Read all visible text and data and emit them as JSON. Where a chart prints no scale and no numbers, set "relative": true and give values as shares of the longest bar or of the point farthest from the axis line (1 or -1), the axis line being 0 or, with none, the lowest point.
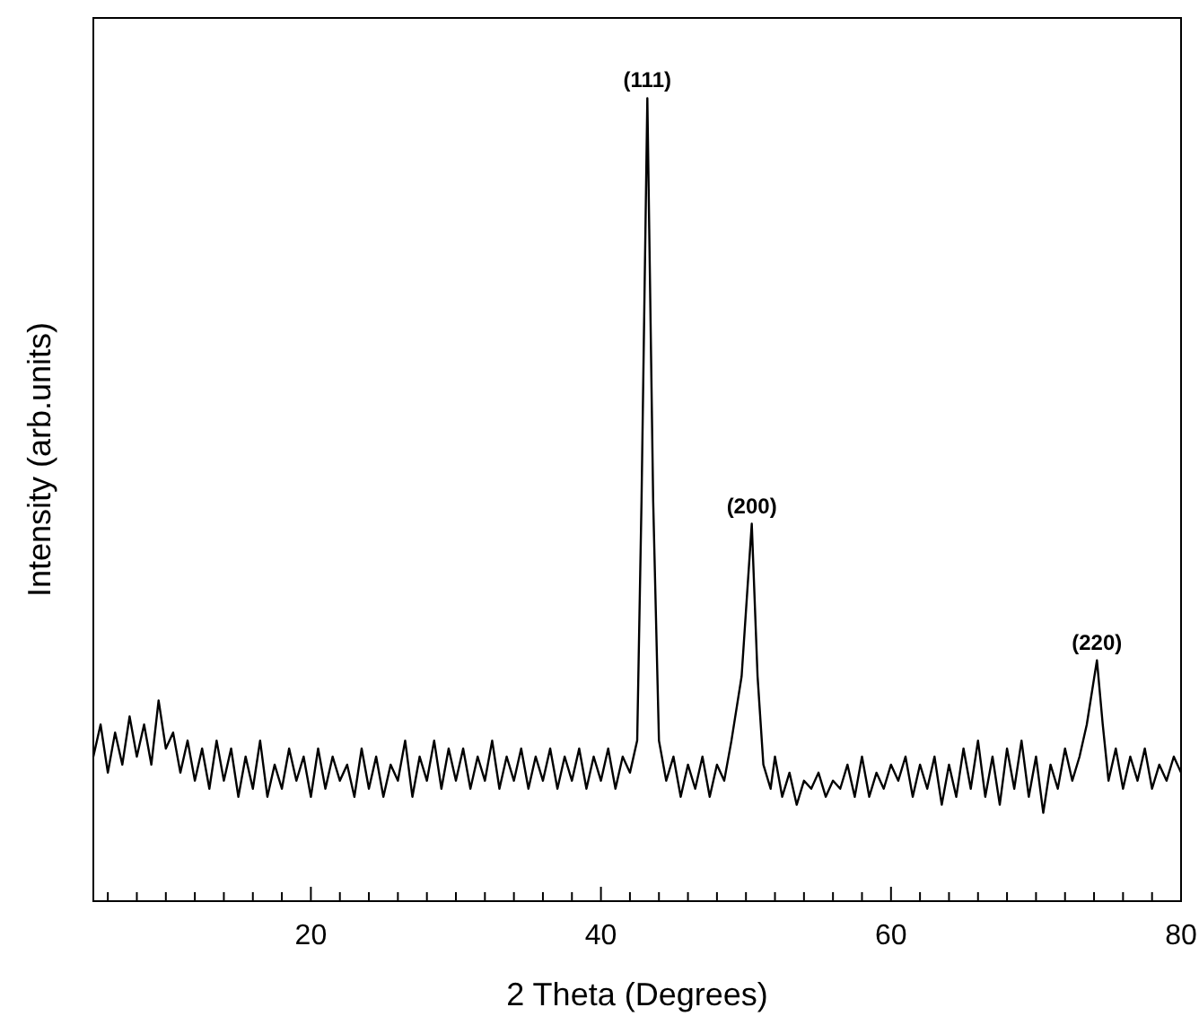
{
  "chart_data": {
    "type": "line",
    "relative": true,
    "xlabel": "2 Theta (Degrees)",
    "ylabel": "Intensity (arb.units)",
    "xlim": [
      5,
      80
    ],
    "xticks": [
      {
        "value": 6,
        "label": null
      },
      {
        "value": 8,
        "label": null
      },
      {
        "value": 10,
        "label": null
      },
      {
        "value": 12,
        "label": null
      },
      {
        "value": 14,
        "label": null
      },
      {
        "value": 16,
        "label": null
      },
      {
        "value": 18,
        "label": null
      },
      20,
      {
        "value": 22,
        "label": null
      },
      {
        "value": 24,
        "label": null
      },
      {
        "value": 26,
        "label": null
      },
      {
        "value": 28,
        "label": null
      },
      {
        "value": 30,
        "label": null
      },
      {
        "value": 32,
        "label": null
      },
      {
        "value": 34,
        "label": null
      },
      {
        "value": 36,
        "label": null
      },
      {
        "value": 38,
        "label": null
      },
      40,
      {
        "value": 42,
        "label": null
      },
      {
        "value": 44,
        "label": null
      },
      {
        "value": 46,
        "label": null
      },
      {
        "value": 48,
        "label": null
      },
      {
        "value": 50,
        "label": null
      },
      {
        "value": 52,
        "label": null
      },
      {
        "value": 54,
        "label": null
      },
      {
        "value": 56,
        "label": null
      },
      {
        "value": 58,
        "label": null
      },
      60,
      {
        "value": 62,
        "label": null
      },
      {
        "value": 64,
        "label": null
      },
      {
        "value": 66,
        "label": null
      },
      {
        "value": 68,
        "label": null
      },
      {
        "value": 70,
        "label": null
      },
      {
        "value": 72,
        "label": null
      },
      {
        "value": 74,
        "label": null
      },
      {
        "value": 76,
        "label": null
      },
      {
        "value": 78,
        "label": null
      },
      80
    ],
    "x": [
      5,
      5.5,
      6,
      6.5,
      7,
      7.5,
      8,
      8.5,
      9,
      9.5,
      10,
      10.5,
      11,
      11.5,
      12,
      12.5,
      13,
      13.5,
      14,
      14.5,
      15,
      15.5,
      16,
      16.5,
      17,
      17.5,
      18,
      18.5,
      19,
      19.5,
      20,
      20.5,
      21,
      21.5,
      22,
      22.5,
      23,
      23.5,
      24,
      24.5,
      25,
      25.5,
      26,
      26.5,
      27,
      27.5,
      28,
      28.5,
      29,
      29.5,
      30,
      30.5,
      31,
      31.5,
      32,
      32.5,
      33,
      33.5,
      34,
      34.5,
      35,
      35.5,
      36,
      36.5,
      37,
      37.5,
      38,
      38.5,
      39,
      39.5,
      40,
      40.5,
      41,
      41.5,
      42,
      42.5,
      42.8,
      43.2,
      43.6,
      44,
      44.5,
      45,
      45.5,
      46,
      46.5,
      47,
      47.5,
      48,
      48.5,
      49,
      49.7,
      50.4,
      50.8,
      51.2,
      51.7,
      52,
      52.5,
      53,
      53.5,
      54,
      54.5,
      55,
      55.5,
      56,
      56.5,
      57,
      57.5,
      58,
      58.5,
      59,
      59.5,
      60,
      60.5,
      61,
      61.5,
      62,
      62.5,
      63,
      63.5,
      64,
      64.5,
      65,
      65.5,
      66,
      66.5,
      67,
      67.5,
      68,
      68.5,
      69,
      69.5,
      70,
      70.5,
      71,
      71.5,
      72,
      72.5,
      73,
      73.5,
      74.2,
      74.6,
      75,
      75.5,
      76,
      76.5,
      77,
      77.5,
      78,
      78.5,
      79,
      79.5,
      80
    ],
    "series": [
      {
        "color": "#000000",
        "values": [
          0.18,
          0.22,
          0.16,
          0.21,
          0.17,
          0.23,
          0.18,
          0.22,
          0.17,
          0.25,
          0.19,
          0.21,
          0.16,
          0.2,
          0.15,
          0.19,
          0.14,
          0.2,
          0.15,
          0.19,
          0.13,
          0.18,
          0.14,
          0.2,
          0.13,
          0.17,
          0.14,
          0.19,
          0.15,
          0.18,
          0.13,
          0.19,
          0.14,
          0.18,
          0.15,
          0.17,
          0.13,
          0.19,
          0.14,
          0.18,
          0.13,
          0.17,
          0.15,
          0.2,
          0.13,
          0.18,
          0.15,
          0.2,
          0.14,
          0.19,
          0.15,
          0.19,
          0.14,
          0.18,
          0.15,
          0.2,
          0.14,
          0.18,
          0.15,
          0.19,
          0.14,
          0.18,
          0.15,
          0.19,
          0.14,
          0.18,
          0.15,
          0.19,
          0.14,
          0.18,
          0.15,
          0.19,
          0.14,
          0.18,
          0.16,
          0.2,
          0.5,
          1,
          0.5,
          0.2,
          0.15,
          0.18,
          0.13,
          0.17,
          0.14,
          0.18,
          0.13,
          0.17,
          0.15,
          0.2,
          0.28,
          0.47,
          0.28,
          0.17,
          0.14,
          0.18,
          0.13,
          0.16,
          0.12,
          0.15,
          0.14,
          0.16,
          0.13,
          0.15,
          0.14,
          0.17,
          0.13,
          0.18,
          0.13,
          0.16,
          0.14,
          0.17,
          0.15,
          0.18,
          0.13,
          0.17,
          0.14,
          0.18,
          0.12,
          0.17,
          0.13,
          0.19,
          0.14,
          0.2,
          0.13,
          0.18,
          0.12,
          0.19,
          0.14,
          0.2,
          0.13,
          0.18,
          0.11,
          0.17,
          0.14,
          0.19,
          0.15,
          0.18,
          0.22,
          0.3,
          0.22,
          0.15,
          0.19,
          0.14,
          0.18,
          0.15,
          0.19,
          0.14,
          0.17,
          0.15,
          0.18,
          0.16
        ]
      }
    ],
    "annotations": [
      {
        "text": "(111)",
        "x": 43.2,
        "y": 1
      },
      {
        "text": "(200)",
        "x": 50.4,
        "y": 0.47
      },
      {
        "text": "(220)",
        "x": 74.2,
        "y": 0.3
      }
    ]
  }
}
